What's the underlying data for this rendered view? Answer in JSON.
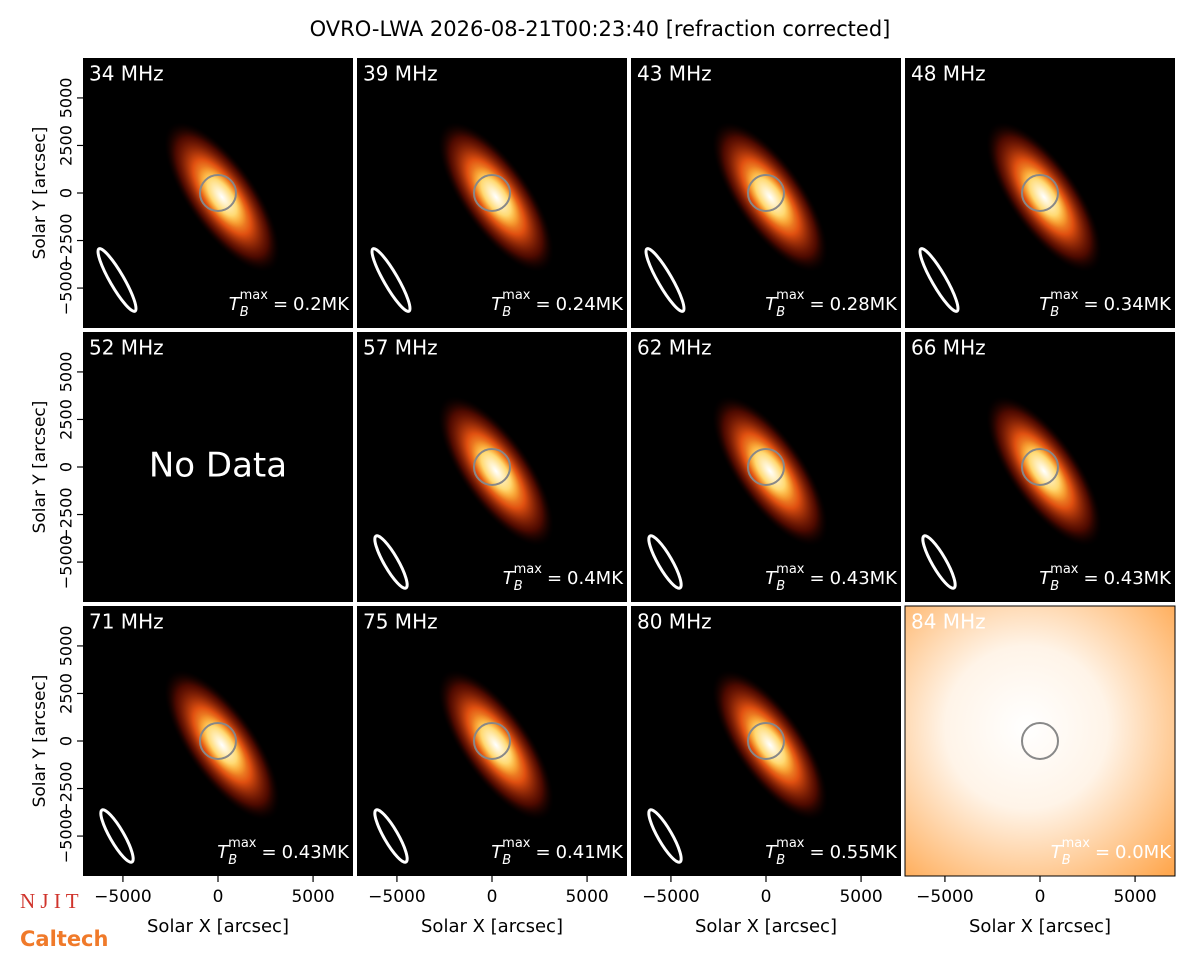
{
  "title": "OVRO-LWA 2026-08-21T00:23:40 [refraction corrected]",
  "axes": {
    "xlabel": "Solar X [arcsec]",
    "ylabel": "Solar Y [arcsec]",
    "xlim": [
      -7100,
      7100
    ],
    "ylim": [
      -7100,
      7100
    ],
    "xticks": [
      {
        "value": -5000,
        "label": "−5000"
      },
      0,
      5000
    ],
    "yticks": [
      {
        "value": -5000,
        "label": "−5000"
      },
      {
        "value": -2500,
        "label": "−2500"
      },
      0,
      2500,
      5000
    ]
  },
  "tb_label": {
    "symbol": "T",
    "sub": "B",
    "sup": "max",
    "eq": "="
  },
  "logos": [
    "N J I T",
    "Caltech"
  ],
  "chart_data": [
    {
      "type": "image",
      "label": "34 MHz",
      "tb_max": {
        "value": 0.2,
        "label": "0.2MK"
      }
    },
    {
      "type": "image",
      "label": "39 MHz",
      "tb_max": {
        "value": 0.24,
        "label": "0.24MK"
      }
    },
    {
      "type": "image",
      "label": "43 MHz",
      "tb_max": {
        "value": 0.28,
        "label": "0.28MK"
      }
    },
    {
      "type": "image",
      "label": "48 MHz",
      "tb_max": {
        "value": 0.34,
        "label": "0.34MK"
      }
    },
    {
      "type": "image",
      "label": "52 MHz",
      "note": "No Data"
    },
    {
      "type": "image",
      "label": "57 MHz",
      "tb_max": {
        "value": 0.4,
        "label": "0.4MK"
      }
    },
    {
      "type": "image",
      "label": "62 MHz",
      "tb_max": {
        "value": 0.43,
        "label": "0.43MK"
      }
    },
    {
      "type": "image",
      "label": "66 MHz",
      "tb_max": {
        "value": 0.43,
        "label": "0.43MK"
      }
    },
    {
      "type": "image",
      "label": "71 MHz",
      "tb_max": {
        "value": 0.43,
        "label": "0.43MK"
      }
    },
    {
      "type": "image",
      "label": "75 MHz",
      "tb_max": {
        "value": 0.41,
        "label": "0.41MK"
      }
    },
    {
      "type": "image",
      "label": "80 MHz",
      "tb_max": {
        "value": 0.55,
        "label": "0.55MK"
      }
    },
    {
      "type": "image",
      "label": "84 MHz",
      "tb_max": {
        "value": 0.0,
        "label": "0.0MK"
      },
      "saturated": true
    }
  ]
}
